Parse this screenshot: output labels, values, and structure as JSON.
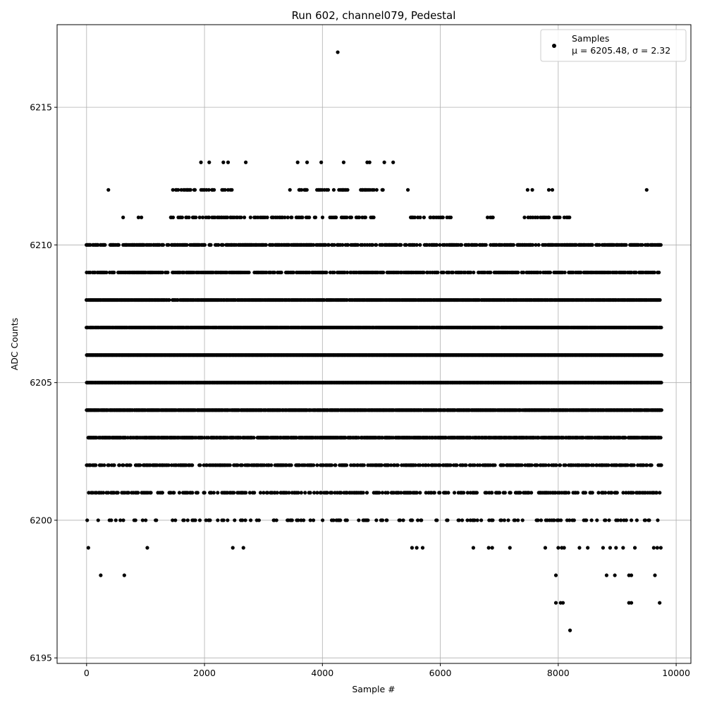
{
  "chart_data": {
    "type": "scatter",
    "title": "Run 602, channel079, Pedestal",
    "xlabel": "Sample #",
    "ylabel": "ADC Counts",
    "xlim": [
      -500,
      10250
    ],
    "ylim": [
      6194.8,
      6218
    ],
    "xticks": [
      0,
      2000,
      4000,
      6000,
      8000,
      10000
    ],
    "yticks": [
      6195,
      6200,
      6205,
      6210,
      6215
    ],
    "grid": true,
    "legend": {
      "placement": "top-right",
      "label": "Samples",
      "stats": "μ = 6205.48, σ = 2.32"
    },
    "marker_color": "#000000",
    "series": [
      {
        "name": "Samples",
        "bands": [
          {
            "y": 6210,
            "segments": [
              [
                0,
                9750
              ]
            ],
            "density": 0.55
          },
          {
            "y": 6209,
            "segments": [
              [
                0,
                9750
              ]
            ],
            "density": 0.6
          },
          {
            "y": 6208,
            "segments": [
              [
                0,
                9750
              ]
            ],
            "density": 0.85
          },
          {
            "y": 6207,
            "segments": [
              [
                0,
                9750
              ]
            ],
            "density": 0.95
          },
          {
            "y": 6206,
            "segments": [
              [
                0,
                9750
              ]
            ],
            "density": 1.0
          },
          {
            "y": 6205,
            "segments": [
              [
                0,
                9750
              ]
            ],
            "density": 1.0
          },
          {
            "y": 6204,
            "segments": [
              [
                0,
                9750
              ]
            ],
            "density": 0.95
          },
          {
            "y": 6203,
            "segments": [
              [
                0,
                9750
              ]
            ],
            "density": 0.8
          },
          {
            "y": 6202,
            "segments": [
              [
                0,
                9750
              ]
            ],
            "density": 0.5
          },
          {
            "y": 6201,
            "segments": [
              [
                0,
                9750
              ]
            ],
            "density": 0.4
          },
          {
            "y": 6200,
            "segments": [
              [
                0,
                9750
              ]
            ],
            "density": 0.2
          },
          {
            "y": 6211,
            "segments": [
              [
                1400,
                4900
              ],
              [
                5500,
                6200
              ],
              [
                6800,
                6900
              ],
              [
                7400,
                8200
              ]
            ],
            "density": 0.35
          },
          {
            "y": 6212,
            "segments": [
              [
                1450,
                2500
              ],
              [
                3450,
                4450
              ],
              [
                4650,
                5100
              ]
            ],
            "density": 0.3
          }
        ],
        "points": [
          [
            4260,
            6217
          ],
          [
            1940,
            6213
          ],
          [
            2080,
            6213
          ],
          [
            2320,
            6213
          ],
          [
            2400,
            6213
          ],
          [
            2700,
            6213
          ],
          [
            3580,
            6213
          ],
          [
            3740,
            6213
          ],
          [
            3980,
            6213
          ],
          [
            4360,
            6213
          ],
          [
            4760,
            6213
          ],
          [
            4800,
            6213
          ],
          [
            5050,
            6213
          ],
          [
            5200,
            6213
          ],
          [
            370,
            6212
          ],
          [
            5450,
            6212
          ],
          [
            7480,
            6212
          ],
          [
            7560,
            6212
          ],
          [
            7840,
            6212
          ],
          [
            7900,
            6212
          ],
          [
            9500,
            6212
          ],
          [
            620,
            6211
          ],
          [
            880,
            6211
          ],
          [
            930,
            6211
          ],
          [
            30,
            6199
          ],
          [
            1030,
            6199
          ],
          [
            2480,
            6199
          ],
          [
            2660,
            6199
          ],
          [
            5520,
            6199
          ],
          [
            5600,
            6199
          ],
          [
            5700,
            6199
          ],
          [
            6560,
            6199
          ],
          [
            6820,
            6199
          ],
          [
            6880,
            6199
          ],
          [
            7180,
            6199
          ],
          [
            7780,
            6199
          ],
          [
            8000,
            6199
          ],
          [
            8060,
            6199
          ],
          [
            8100,
            6199
          ],
          [
            8360,
            6199
          ],
          [
            8500,
            6199
          ],
          [
            8760,
            6199
          ],
          [
            8880,
            6199
          ],
          [
            8980,
            6199
          ],
          [
            9100,
            6199
          ],
          [
            9300,
            6199
          ],
          [
            9620,
            6199
          ],
          [
            9680,
            6199
          ],
          [
            9740,
            6199
          ],
          [
            240,
            6198
          ],
          [
            640,
            6198
          ],
          [
            7960,
            6198
          ],
          [
            8820,
            6198
          ],
          [
            8960,
            6198
          ],
          [
            9200,
            6198
          ],
          [
            9240,
            6198
          ],
          [
            9640,
            6198
          ],
          [
            7960,
            6197
          ],
          [
            8040,
            6197
          ],
          [
            8080,
            6197
          ],
          [
            9200,
            6197
          ],
          [
            9240,
            6197
          ],
          [
            9720,
            6197
          ],
          [
            8200,
            6196
          ]
        ]
      }
    ]
  }
}
